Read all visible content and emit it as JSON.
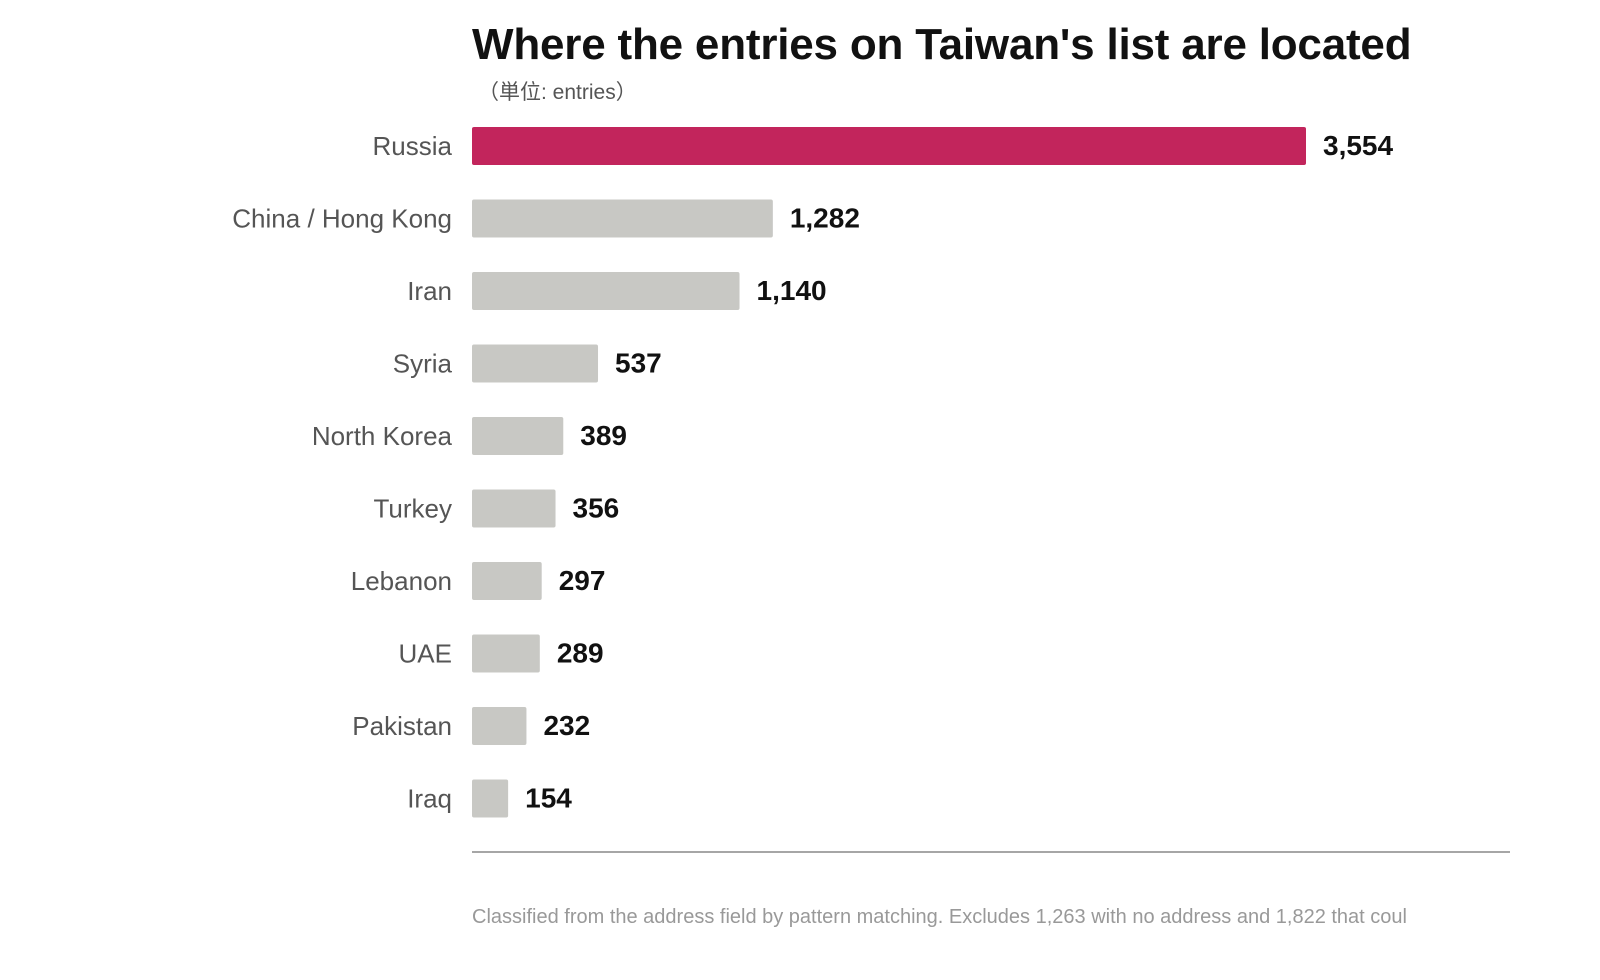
{
  "chart_data": {
    "type": "bar",
    "orientation": "horizontal",
    "title": "Where the entries on Taiwan's list are located",
    "subtitle": "（単位: entries）",
    "categories": [
      "Russia",
      "China / Hong Kong",
      "Iran",
      "Syria",
      "North Korea",
      "Turkey",
      "Lebanon",
      "UAE",
      "Pakistan",
      "Iraq"
    ],
    "values": [
      3554,
      1282,
      1140,
      537,
      389,
      356,
      297,
      289,
      232,
      154
    ],
    "value_labels": [
      "3,554",
      "1,282",
      "1,140",
      "537",
      "389",
      "356",
      "297",
      "289",
      "232",
      "154"
    ],
    "highlight_category": "Russia",
    "colors": {
      "highlight": "#c2255c",
      "default": "#c8c8c4",
      "baseline": "#888888"
    },
    "footnote": "Classified from the address field by pattern matching. Excludes 1,263 with no address and 1,822 that coul",
    "grid": false
  }
}
